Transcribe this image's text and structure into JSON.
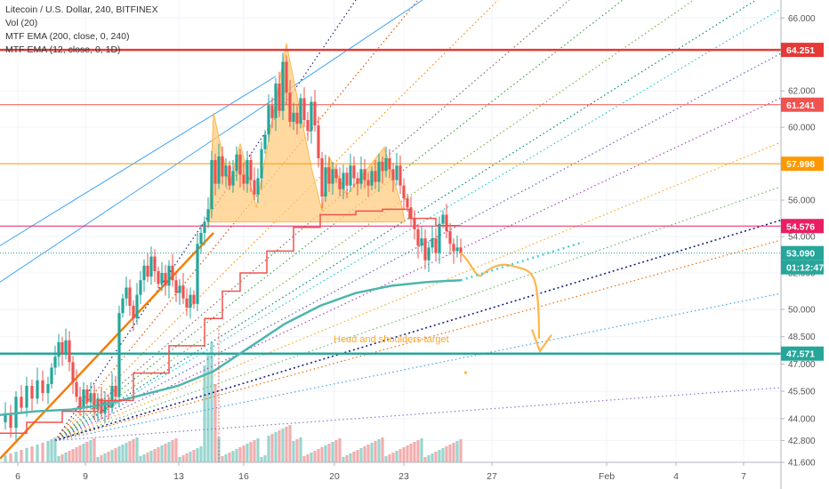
{
  "legend": {
    "title": "Litecoin / U.S. Dollar, 240, BITFINEX",
    "vol": "Vol (20)",
    "ema1": "MTF EMA (200, close, 0, 240)",
    "ema2": "MTF EMA (12, close, 0, 1D)"
  },
  "chart_data": {
    "type": "candlestick",
    "ylim": [
      41.6,
      66.6
    ],
    "y_ticks": [
      "41.600",
      "42.800",
      "44.000",
      "45.500",
      "47.000",
      "48.500",
      "50.000",
      "52.000",
      "54.000",
      "56.000",
      "58.000",
      "60.000",
      "62.000",
      "66.000"
    ],
    "x_ticks": [
      "6",
      "9",
      "13",
      "16",
      "20",
      "23",
      "27",
      "Feb",
      "4",
      "7"
    ],
    "price_tags": [
      {
        "label": "64.251",
        "value": 64.251,
        "color": "#e53935"
      },
      {
        "label": "61.241",
        "value": 61.241,
        "color": "#ef5350"
      },
      {
        "label": "57.998",
        "value": 57.998,
        "color": "#ff9800"
      },
      {
        "label": "54.576",
        "value": 54.576,
        "color": "#e91e63"
      },
      {
        "label": "53.090",
        "value": 53.09,
        "color": "#26a69a"
      },
      {
        "label": "01:12:47",
        "value": null,
        "color": "#26a69a"
      },
      {
        "label": "47.571",
        "value": 47.571,
        "color": "#26a69a"
      }
    ],
    "annotation": "Head and shoulders target",
    "colors": {
      "up": "#26a69a",
      "down": "#ef5350",
      "ema200": "#4db6ac",
      "ema12": "#ef5350",
      "pattern": "#ffcc80",
      "target": "#ffb74d"
    }
  }
}
